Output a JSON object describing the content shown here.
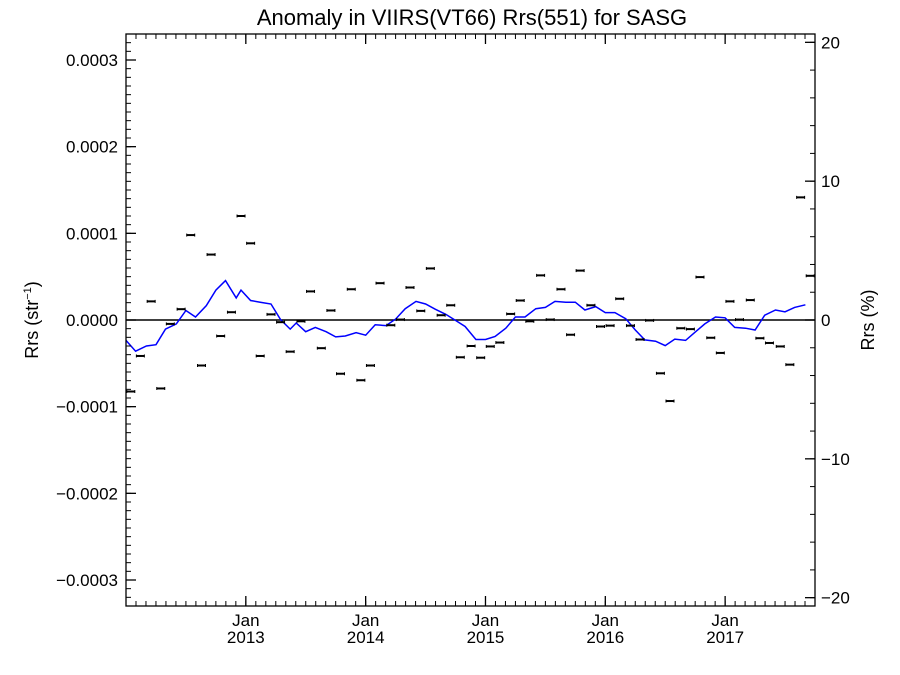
{
  "chart_data": {
    "type": "scatter",
    "title": "Anomaly in VIIRS(VT66) Rrs(551) for SASG",
    "ylabel_left": "Rrs (str",
    "ylabel_left_superscript": "−1",
    "ylabel_left_close": ")",
    "ylabel_right": "Rrs (%)",
    "ylim": [
      -0.00033,
      0.00033
    ],
    "y2lim": [
      -20.6,
      20.6
    ],
    "xlim": [
      2012.0,
      2017.75
    ],
    "grid": false,
    "legend": "none",
    "colors": {
      "points": "#000000",
      "running_mean": "#0000ff",
      "zero_line": "#000000"
    },
    "y_ticks": [
      {
        "value": 0.0003,
        "label": "0.0003"
      },
      {
        "value": 0.0002,
        "label": "0.0002"
      },
      {
        "value": 0.0001,
        "label": "0.0001"
      },
      {
        "value": 0.0,
        "label": "0.0000"
      },
      {
        "value": -0.0001,
        "label": "−0.0001"
      },
      {
        "value": -0.0002,
        "label": "−0.0002"
      },
      {
        "value": -0.0003,
        "label": "−0.0003"
      }
    ],
    "y2_ticks": [
      {
        "value": 20,
        "label": "20"
      },
      {
        "value": 10,
        "label": "10"
      },
      {
        "value": 0,
        "label": "0"
      },
      {
        "value": -10,
        "label": "−10"
      },
      {
        "value": -20,
        "label": "−20"
      }
    ],
    "x_ticks": [
      {
        "value": 2013.0,
        "month": "Jan",
        "year": "2013"
      },
      {
        "value": 2014.0,
        "month": "Jan",
        "year": "2014"
      },
      {
        "value": 2015.0,
        "month": "Jan",
        "year": "2015"
      },
      {
        "value": 2016.0,
        "month": "Jan",
        "year": "2016"
      },
      {
        "value": 2017.0,
        "month": "Jan",
        "year": "2017"
      }
    ],
    "points": [
      [
        2012.04,
        -8.25e-05
      ],
      [
        2012.12,
        -4.15e-05
      ],
      [
        2012.21,
        2.15e-05
      ],
      [
        2012.29,
        -7.9e-05
      ],
      [
        2012.37,
        -4.5e-06
      ],
      [
        2012.46,
        1.25e-05
      ],
      [
        2012.54,
        9.8e-05
      ],
      [
        2012.63,
        -5.25e-05
      ],
      [
        2012.71,
        7.55e-05
      ],
      [
        2012.79,
        -1.85e-05
      ],
      [
        2012.88,
        9e-06
      ],
      [
        2012.96,
        0.00012
      ],
      [
        2013.04,
        8.85e-05
      ],
      [
        2013.12,
        -4.15e-05
      ],
      [
        2013.21,
        6.5e-06
      ],
      [
        2013.29,
        -2.5e-06
      ],
      [
        2013.37,
        -3.65e-05
      ],
      [
        2013.46,
        -1.5e-06
      ],
      [
        2013.54,
        3.3e-05
      ],
      [
        2013.63,
        -3.25e-05
      ],
      [
        2013.71,
        1.1e-05
      ],
      [
        2013.79,
        -6.2e-05
      ],
      [
        2013.88,
        3.55e-05
      ],
      [
        2013.96,
        -6.95e-05
      ],
      [
        2014.04,
        -5.25e-05
      ],
      [
        2014.12,
        4.25e-05
      ],
      [
        2014.21,
        -6e-06
      ],
      [
        2014.29,
        5e-07
      ],
      [
        2014.37,
        3.75e-05
      ],
      [
        2014.46,
        1.05e-05
      ],
      [
        2014.54,
        5.95e-05
      ],
      [
        2014.63,
        5.5e-06
      ],
      [
        2014.71,
        1.7e-05
      ],
      [
        2014.79,
        -4.3e-05
      ],
      [
        2014.88,
        -3e-05
      ],
      [
        2014.96,
        -4.35e-05
      ],
      [
        2015.04,
        -3.05e-05
      ],
      [
        2015.12,
        -2.6e-05
      ],
      [
        2015.21,
        7e-06
      ],
      [
        2015.29,
        2.25e-05
      ],
      [
        2015.37,
        -1.5e-06
      ],
      [
        2015.46,
        5.15e-05
      ],
      [
        2015.54,
        5e-07
      ],
      [
        2015.63,
        3.55e-05
      ],
      [
        2015.71,
        -1.7e-05
      ],
      [
        2015.79,
        5.7e-05
      ],
      [
        2015.88,
        1.7e-05
      ],
      [
        2015.96,
        -7.5e-06
      ],
      [
        2016.04,
        -6.5e-06
      ],
      [
        2016.12,
        2.45e-05
      ],
      [
        2016.21,
        -6.5e-06
      ],
      [
        2016.29,
        -2.25e-05
      ],
      [
        2016.37,
        -5e-07
      ],
      [
        2016.46,
        -6.15e-05
      ],
      [
        2016.54,
        -9.35e-05
      ],
      [
        2016.63,
        -9.5e-06
      ],
      [
        2016.71,
        -1.05e-05
      ],
      [
        2016.79,
        4.95e-05
      ],
      [
        2016.88,
        -2.05e-05
      ],
      [
        2016.96,
        -3.8e-05
      ],
      [
        2017.04,
        2.15e-05
      ],
      [
        2017.12,
        5e-07
      ],
      [
        2017.21,
        2.3e-05
      ],
      [
        2017.29,
        -2.1e-05
      ],
      [
        2017.37,
        -2.65e-05
      ],
      [
        2017.46,
        -3.05e-05
      ],
      [
        2017.54,
        -5.15e-05
      ],
      [
        2017.63,
        0.0001415
      ],
      [
        2017.71,
        5.1e-05
      ]
    ],
    "running_mean": [
      [
        2012.0,
        -2.35e-05
      ],
      [
        2012.08,
        -3.6e-05
      ],
      [
        2012.17,
        -3e-05
      ],
      [
        2012.25,
        -2.85e-05
      ],
      [
        2012.33,
        -1.05e-05
      ],
      [
        2012.42,
        -4.5e-06
      ],
      [
        2012.5,
        1.1e-05
      ],
      [
        2012.58,
        3.5e-06
      ],
      [
        2012.67,
        1.65e-05
      ],
      [
        2012.75,
        3.45e-05
      ],
      [
        2012.83,
        4.55e-05
      ],
      [
        2012.92,
        2.55e-05
      ],
      [
        2012.96,
        3.45e-05
      ],
      [
        2013.04,
        2.25e-05
      ],
      [
        2013.12,
        2.05e-05
      ],
      [
        2013.21,
        1.85e-05
      ],
      [
        2013.29,
        5e-07
      ],
      [
        2013.37,
        -1.05e-05
      ],
      [
        2013.42,
        -3.5e-06
      ],
      [
        2013.5,
        -1.35e-05
      ],
      [
        2013.58,
        -8.5e-06
      ],
      [
        2013.67,
        -1.35e-05
      ],
      [
        2013.75,
        -1.95e-05
      ],
      [
        2013.83,
        -1.85e-05
      ],
      [
        2013.92,
        -1.45e-05
      ],
      [
        2014.0,
        -1.75e-05
      ],
      [
        2014.08,
        -5.5e-06
      ],
      [
        2014.17,
        -6.5e-06
      ],
      [
        2014.25,
        1e-06
      ],
      [
        2014.33,
        1.3e-05
      ],
      [
        2014.42,
        2.15e-05
      ],
      [
        2014.5,
        1.85e-05
      ],
      [
        2014.58,
        1.25e-05
      ],
      [
        2014.67,
        6.5e-06
      ],
      [
        2014.75,
        -5e-07
      ],
      [
        2014.83,
        -7.5e-06
      ],
      [
        2014.92,
        -2.25e-05
      ],
      [
        2015.0,
        -2.25e-05
      ],
      [
        2015.08,
        -1.9e-05
      ],
      [
        2015.17,
        -9.5e-06
      ],
      [
        2015.25,
        3.5e-06
      ],
      [
        2015.33,
        3.5e-06
      ],
      [
        2015.42,
        1.3e-05
      ],
      [
        2015.5,
        1.45e-05
      ],
      [
        2015.58,
        2.15e-05
      ],
      [
        2015.67,
        2.05e-05
      ],
      [
        2015.75,
        2.05e-05
      ],
      [
        2015.83,
        1.15e-05
      ],
      [
        2015.92,
        1.55e-05
      ],
      [
        2016.0,
        8.5e-06
      ],
      [
        2016.08,
        8.5e-06
      ],
      [
        2016.17,
        1.5e-06
      ],
      [
        2016.25,
        -1.15e-05
      ],
      [
        2016.33,
        -2.3e-05
      ],
      [
        2016.42,
        -2.45e-05
      ],
      [
        2016.5,
        -2.95e-05
      ],
      [
        2016.58,
        -2.2e-05
      ],
      [
        2016.67,
        -2.35e-05
      ],
      [
        2016.75,
        -1.4e-05
      ],
      [
        2016.83,
        -4.5e-06
      ],
      [
        2016.92,
        3.5e-06
      ],
      [
        2017.0,
        2.5e-06
      ],
      [
        2017.08,
        -8.5e-06
      ],
      [
        2017.17,
        -9.5e-06
      ],
      [
        2017.25,
        -1.15e-05
      ],
      [
        2017.33,
        5.5e-06
      ],
      [
        2017.42,
        1.15e-05
      ],
      [
        2017.5,
        9.5e-06
      ],
      [
        2017.58,
        1.45e-05
      ],
      [
        2017.67,
        1.75e-05
      ]
    ]
  }
}
